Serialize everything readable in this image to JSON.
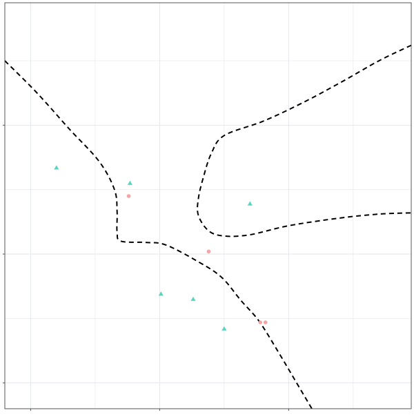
{
  "chart_data": {
    "type": "scatter",
    "title": "",
    "xlabel": "",
    "ylabel": "",
    "xlim": [
      -1.7,
      1.45
    ],
    "ylim": [
      -1.2,
      1.95
    ],
    "x_grid_major": [
      -1.5,
      -0.5,
      0.5,
      1.5
    ],
    "x_grid_minor": [
      -1.0,
      0.0,
      1.0
    ],
    "y_grid_major": [
      -1.0,
      0.0,
      1.0
    ],
    "y_grid_minor": [
      -0.5,
      0.5,
      1.5
    ],
    "grid": true,
    "legend": "none",
    "colors": {
      "triangle_class": "#5ed4c0",
      "circle_class": "#f2a5a5",
      "boundary": "#000000",
      "grid": "#e6e6ee",
      "frame": "#555555"
    },
    "series": [
      {
        "marker": "triangle",
        "points": [
          {
            "x": -1.3,
            "y": 0.67
          },
          {
            "x": -0.73,
            "y": 0.55
          },
          {
            "x": 0.2,
            "y": 0.39
          },
          {
            "x": -0.49,
            "y": -0.31
          },
          {
            "x": -0.24,
            "y": -0.35
          },
          {
            "x": 0.0,
            "y": -0.58
          }
        ]
      },
      {
        "marker": "circle",
        "points": [
          {
            "x": -0.74,
            "y": 0.45
          },
          {
            "x": -0.12,
            "y": 0.02
          },
          {
            "x": 0.28,
            "y": -0.53
          },
          {
            "x": 0.32,
            "y": -0.53
          }
        ]
      }
    ],
    "decision_boundary": [
      [
        {
          "x": -1.7,
          "y": 1.5
        },
        {
          "x": -1.45,
          "y": 1.25
        },
        {
          "x": -1.2,
          "y": 0.97
        },
        {
          "x": -0.97,
          "y": 0.72
        },
        {
          "x": -0.85,
          "y": 0.5
        },
        {
          "x": -0.83,
          "y": 0.33
        },
        {
          "x": -0.83,
          "y": 0.17
        },
        {
          "x": -0.8,
          "y": 0.1
        },
        {
          "x": -0.6,
          "y": 0.09
        },
        {
          "x": -0.45,
          "y": 0.07
        },
        {
          "x": -0.2,
          "y": -0.06
        },
        {
          "x": -0.02,
          "y": -0.18
        },
        {
          "x": 0.13,
          "y": -0.36
        },
        {
          "x": 0.27,
          "y": -0.52
        },
        {
          "x": 0.42,
          "y": -0.76
        },
        {
          "x": 0.55,
          "y": -0.98
        },
        {
          "x": 0.68,
          "y": -1.2
        }
      ],
      [
        {
          "x": 1.45,
          "y": 1.62
        },
        {
          "x": 1.2,
          "y": 1.5
        },
        {
          "x": 0.9,
          "y": 1.33
        },
        {
          "x": 0.6,
          "y": 1.17
        },
        {
          "x": 0.3,
          "y": 1.03
        },
        {
          "x": 0.0,
          "y": 0.92
        },
        {
          "x": -0.1,
          "y": 0.78
        },
        {
          "x": -0.16,
          "y": 0.6
        },
        {
          "x": -0.2,
          "y": 0.43
        },
        {
          "x": -0.2,
          "y": 0.3
        },
        {
          "x": -0.12,
          "y": 0.18
        },
        {
          "x": 0.0,
          "y": 0.14
        },
        {
          "x": 0.2,
          "y": 0.15
        },
        {
          "x": 0.5,
          "y": 0.22
        },
        {
          "x": 0.9,
          "y": 0.28
        },
        {
          "x": 1.2,
          "y": 0.31
        },
        {
          "x": 1.45,
          "y": 0.32
        }
      ]
    ]
  }
}
